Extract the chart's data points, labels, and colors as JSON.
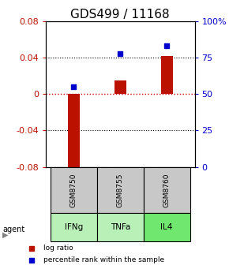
{
  "title": "GDS499 / 11168",
  "samples": [
    "GSM8750",
    "GSM8755",
    "GSM8760"
  ],
  "agents": [
    "IFNg",
    "TNFa",
    "IL4"
  ],
  "log_ratios": [
    -0.085,
    0.015,
    0.042
  ],
  "percentile_ranks": [
    55,
    78,
    83
  ],
  "ylim_left": [
    -0.08,
    0.08
  ],
  "ylim_right": [
    0,
    100
  ],
  "yticks_left": [
    -0.08,
    -0.04,
    0,
    0.04,
    0.08
  ],
  "yticks_right": [
    0,
    25,
    50,
    75,
    100
  ],
  "ytick_labels_right": [
    "0",
    "25",
    "50",
    "75",
    "100%"
  ],
  "bar_color": "#bb1100",
  "point_color": "#0000cc",
  "zero_line_color": "#cc0000",
  "agent_colors": [
    "#b8f0b8",
    "#b8f0b8",
    "#70e870"
  ],
  "sample_box_color": "#c8c8c8",
  "title_fontsize": 11,
  "tick_fontsize": 8,
  "bar_width": 0.25
}
